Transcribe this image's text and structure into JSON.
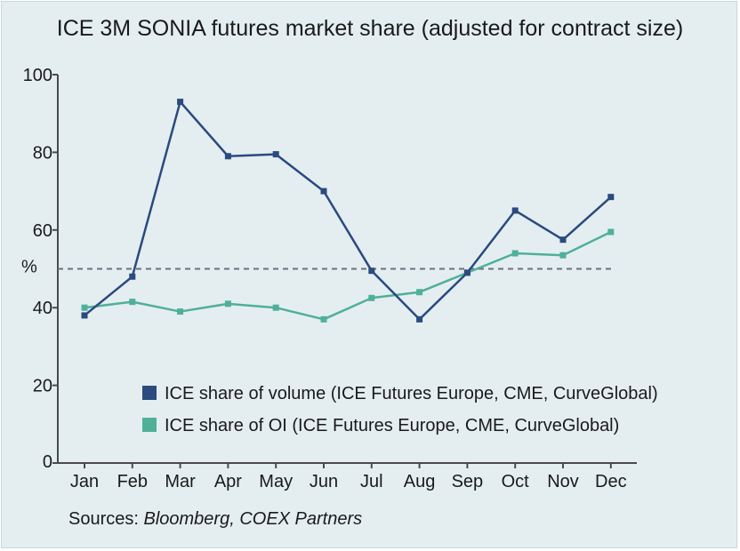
{
  "title": "ICE 3M SONIA futures market share (adjusted for contract size)",
  "source": {
    "prefix": "Sources: ",
    "names": "Bloomberg, COEX Partners"
  },
  "colors": {
    "background": "#e4eef1",
    "axis": "#4a4a4a",
    "reference": "#6a7280"
  },
  "chart_data": {
    "type": "line",
    "categories": [
      "Jan",
      "Feb",
      "Mar",
      "Apr",
      "May",
      "Jun",
      "Jul",
      "Aug",
      "Sep",
      "Oct",
      "Nov",
      "Dec"
    ],
    "ylabel": "%",
    "ylim": [
      0,
      100
    ],
    "yticks": [
      0,
      20,
      40,
      60,
      80,
      100
    ],
    "reference_line": 50,
    "grid": false,
    "legend_position": "bottom-center",
    "series": [
      {
        "name": "ICE share of volume (ICE Futures Europe, CME, CurveGlobal)",
        "color": "#2b4a7e",
        "values": [
          38,
          48,
          93,
          79,
          79.5,
          70,
          49.5,
          37,
          49,
          65,
          57.5,
          68.5
        ]
      },
      {
        "name": "ICE share of OI (ICE Futures Europe, CME, CurveGlobal)",
        "color": "#4fb09a",
        "values": [
          40,
          41.5,
          39,
          41,
          40,
          37,
          42.5,
          44,
          49,
          54,
          53.5,
          59.5
        ]
      }
    ]
  }
}
